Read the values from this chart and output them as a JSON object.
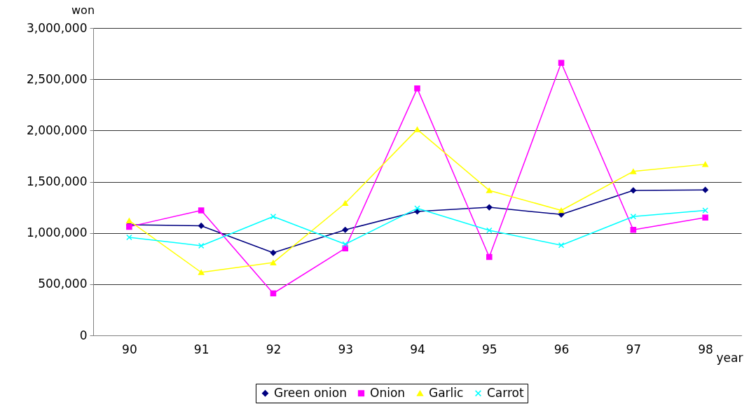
{
  "chart_data": {
    "type": "line",
    "xlabel": "year",
    "ylabel": "won",
    "categories": [
      "90",
      "91",
      "92",
      "93",
      "94",
      "95",
      "96",
      "97",
      "98"
    ],
    "series": [
      {
        "name": "Green onion",
        "color": "#000080",
        "marker": "diamond",
        "values": [
          1080000,
          1070000,
          806000,
          1030000,
          1210000,
          1250000,
          1180000,
          1415000,
          1420000
        ]
      },
      {
        "name": "Onion",
        "color": "#ff00ff",
        "marker": "square",
        "values": [
          1060000,
          1220000,
          410000,
          850000,
          2410000,
          765000,
          2660000,
          1030000,
          1150000
        ]
      },
      {
        "name": "Garlic",
        "color": "#ffff00",
        "marker": "triangle",
        "values": [
          1120000,
          615000,
          710000,
          1290000,
          2010000,
          1415000,
          1220000,
          1600000,
          1670000
        ]
      },
      {
        "name": "Carrot",
        "color": "#00ffff",
        "marker": "cross",
        "values": [
          957000,
          875000,
          1160000,
          890000,
          1240000,
          1025000,
          880000,
          1160000,
          1220000
        ]
      }
    ],
    "ylim": [
      0,
      3000000
    ],
    "yticks": [
      0,
      {
        "value": 500000,
        "label": "500,000"
      },
      {
        "value": 1000000,
        "label": "1,000,000"
      },
      {
        "value": 1500000,
        "label": "1,500,000"
      },
      {
        "value": 2000000,
        "label": "2,000,000"
      },
      {
        "value": 2500000,
        "label": "2,500,000"
      },
      {
        "value": 3000000,
        "label": "3,000,000"
      }
    ],
    "grid": "y",
    "legend": "bottom"
  }
}
